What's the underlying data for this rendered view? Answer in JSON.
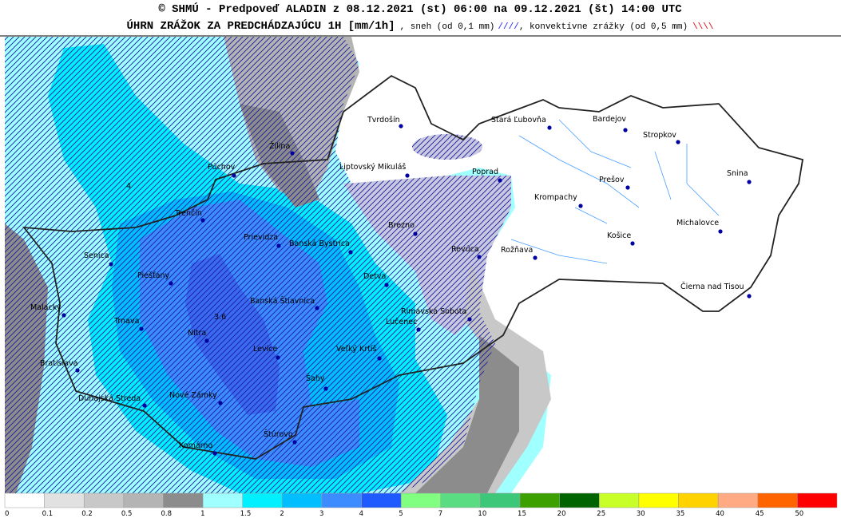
{
  "header": {
    "line1": "© SHMÚ - Predpoveď ALADIN z 08.12.2021 (st) 06:00 na 09.12.2021 (št) 14:00 UTC",
    "line2_title": "ÚHRN ZRÁŽOK ZA PREDCHÁDZAJÚCU 1H [mm/1h]",
    "line2_snow": ", sneh (od 0,1 mm)",
    "line2_snow_symbol": "////",
    "line2_conv": ", konvektívne zrážky (od 0,5 mm)",
    "line2_conv_symbol": "\\\\\\\\"
  },
  "map": {
    "cities": [
      "Tvrdošín",
      "Stará Ľubovňa",
      "Bardejov",
      "Stropkov",
      "Žilina",
      "Púchov",
      "Liptovský Mikuláš",
      "Poprad",
      "Snina",
      "Prešov",
      "Krompachy",
      "Trenčín",
      "Michalovce",
      "Brezno",
      "Košice",
      "Prievidza",
      "Banská Bystrica",
      "Revúca",
      "Rožňava",
      "Senica",
      "Piešťany",
      "Detva",
      "Čierna nad Tisou",
      "Banská Štiavnica",
      "Malacky",
      "Rimavská Sobota",
      "Trnava",
      "Lučenec",
      "Nitra",
      "Veľký Krtíš",
      "Levice",
      "Bratislava",
      "Šahy",
      "Dunajská Streda",
      "Nové Zámky",
      "Štúrovo",
      "Komárno"
    ],
    "annotations": [
      "3.6",
      "4"
    ]
  },
  "legend": {
    "items": [
      {
        "label": "0",
        "color": "#ffffff"
      },
      {
        "label": "0.1",
        "color": "#e1e1e1"
      },
      {
        "label": "0.2",
        "color": "#c8c8c8"
      },
      {
        "label": "0.5",
        "color": "#b4b4b4"
      },
      {
        "label": "0.8",
        "color": "#8c8c8c"
      },
      {
        "label": "1",
        "color": "#a0ffff"
      },
      {
        "label": "1.5",
        "color": "#00f0ff"
      },
      {
        "label": "2",
        "color": "#00beff"
      },
      {
        "label": "3",
        "color": "#3c8cff"
      },
      {
        "label": "4",
        "color": "#1e5aff"
      },
      {
        "label": "5",
        "color": "#80ff80"
      },
      {
        "label": "7",
        "color": "#5adc82"
      },
      {
        "label": "10",
        "color": "#3cc878"
      },
      {
        "label": "15",
        "color": "#3ca000"
      },
      {
        "label": "20",
        "color": "#006400"
      },
      {
        "label": "25",
        "color": "#c8ff28"
      },
      {
        "label": "30",
        "color": "#ffff00"
      },
      {
        "label": "35",
        "color": "#ffd200"
      },
      {
        "label": "40",
        "color": "#ffaa82"
      },
      {
        "label": "45",
        "color": "#ff6400"
      },
      {
        "label": "50",
        "color": "#ff0000"
      }
    ]
  }
}
